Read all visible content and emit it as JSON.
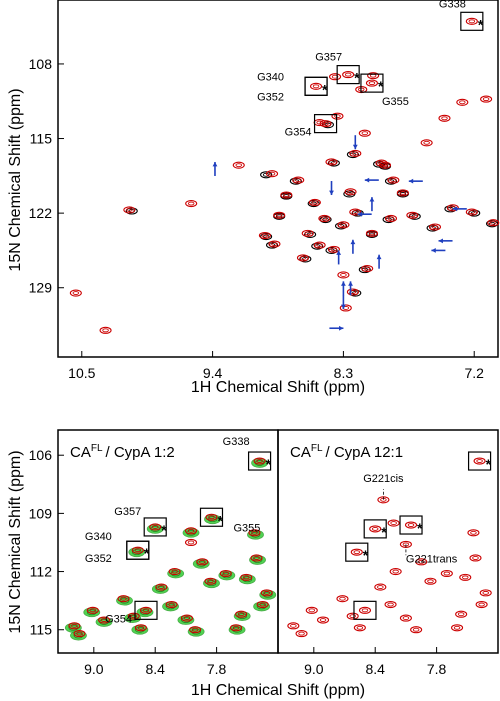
{
  "chart_data": [
    {
      "type": "scatter",
      "panel": "top",
      "xlabel": "1H Chemical Shift (ppm)",
      "ylabel": "15N Chemical Shift (ppm)",
      "x_ticks": [
        "10.5",
        "9.4",
        "8.3",
        "7.2"
      ],
      "y_ticks": [
        "108",
        "115",
        "122",
        "129"
      ],
      "xlim": [
        10.7,
        7.0
      ],
      "ylim": [
        102.0,
        135.5
      ],
      "axis_inverted": true,
      "series": [
        {
          "color": "#000000",
          "role": "reference spectrum",
          "x": [
            8.95,
            8.84,
            8.9,
            8.55,
            8.25,
            8.58,
            8.45,
            8.62,
            8.52,
            8.32,
            8.18,
            7.92,
            8.06,
            7.7,
            7.55,
            7.4,
            7.2,
            7.05,
            7.95,
            8.38,
            8.22,
            8.0,
            8.7,
            8.78,
            7.8,
            8.43,
            7.9,
            8.12,
            8.95,
            10.08,
            8.2,
            8.4
          ],
          "y": [
            118.4,
            122.3,
            125.0,
            121.1,
            120.2,
            124.0,
            122.6,
            126.3,
            125.1,
            123.2,
            122.0,
            122.6,
            124.0,
            122.3,
            123.4,
            121.6,
            122.0,
            123.0,
            117.6,
            117.3,
            116.5,
            117.4,
            119.0,
            120.4,
            120.2,
            113.7,
            119.0,
            127.3,
            124.2,
            121.8,
            129.5,
            125.5
          ]
        },
        {
          "color": "#cc0000",
          "role": "perturbed spectrum",
          "x": [
            8.06,
            7.22,
            8.26,
            8.37,
            8.05,
            8.53,
            8.9,
            8.84,
            8.88,
            8.54,
            8.24,
            8.6,
            8.46,
            8.64,
            8.5,
            8.3,
            8.2,
            7.9,
            8.06,
            7.72,
            7.53,
            7.38,
            7.22,
            7.04,
            7.95,
            8.4,
            8.2,
            7.98,
            8.68,
            8.78,
            7.8,
            8.45,
            7.88,
            8.1,
            8.96,
            10.1,
            8.22,
            8.38,
            9.18,
            9.58,
            10.3,
            10.55,
            8.12,
            8.5,
            8.35,
            7.1,
            7.3,
            7.6,
            7.45,
            8.3,
            8.28,
            8.15
          ],
          "y": [
            109.8,
            104.0,
            109.0,
            109.2,
            109.1,
            110.1,
            118.3,
            122.2,
            124.9,
            121.0,
            120.0,
            123.9,
            122.5,
            126.2,
            125.0,
            123.1,
            121.9,
            122.5,
            123.9,
            122.2,
            123.3,
            121.5,
            121.9,
            122.9,
            117.5,
            117.2,
            116.4,
            117.3,
            118.9,
            120.3,
            120.1,
            113.6,
            118.9,
            127.2,
            124.1,
            121.7,
            129.4,
            125.4,
            117.5,
            121.1,
            133.0,
            129.5,
            114.5,
            113.5,
            112.9,
            111.3,
            111.6,
            115.4,
            113.1,
            127.8,
            130.9,
            110.4
          ]
        }
      ],
      "annotations": [
        {
          "label": "G338",
          "x": 7.22,
          "y": 104.0,
          "boxed": true,
          "star": true
        },
        {
          "label": "G357",
          "x": 8.26,
          "y": 109.0,
          "boxed": true,
          "star": true
        },
        {
          "label": "G355",
          "x": 8.06,
          "y": 109.8,
          "boxed": true,
          "star": true
        },
        {
          "label": "G340",
          "x": 8.53,
          "y": 110.1,
          "boxed": true,
          "star": true
        },
        {
          "label": "G352",
          "x": 8.53,
          "y": 110.1,
          "boxed": true,
          "star": false
        },
        {
          "label": "G354",
          "x": 8.45,
          "y": 113.6,
          "boxed": true,
          "star": false
        }
      ],
      "arrows": [
        {
          "x": 9.38,
          "y": 117.2,
          "direction": "up"
        },
        {
          "x": 8.2,
          "y": 116.0,
          "direction": "down"
        },
        {
          "x": 8.12,
          "y": 118.9,
          "direction": "left"
        },
        {
          "x": 8.06,
          "y": 120.5,
          "direction": "up"
        },
        {
          "x": 8.4,
          "y": 120.3,
          "direction": "down"
        },
        {
          "x": 7.75,
          "y": 119.0,
          "direction": "left"
        },
        {
          "x": 7.38,
          "y": 121.6,
          "direction": "left"
        },
        {
          "x": 8.18,
          "y": 122.1,
          "direction": "left"
        },
        {
          "x": 8.22,
          "y": 124.5,
          "direction": "up"
        },
        {
          "x": 8.34,
          "y": 125.5,
          "direction": "up"
        },
        {
          "x": 8.0,
          "y": 125.9,
          "direction": "up"
        },
        {
          "x": 8.3,
          "y": 128.4,
          "direction": "up"
        },
        {
          "x": 8.24,
          "y": 128.4,
          "direction": "up"
        },
        {
          "x": 7.5,
          "y": 124.6,
          "direction": "left"
        },
        {
          "x": 7.56,
          "y": 125.5,
          "direction": "left"
        },
        {
          "x": 8.3,
          "y": 131.0,
          "direction": "down"
        },
        {
          "x": 8.3,
          "y": 132.8,
          "direction": "right"
        }
      ]
    },
    {
      "type": "scatter",
      "panel": "bottom-left",
      "title_main": "CA",
      "title_sup": "FL",
      "title_rest": "/ CypA   1:2",
      "xlabel": "1H Chemical Shift (ppm)",
      "ylabel": "15N Chemical Shift (ppm)",
      "x_ticks": [
        "9.0",
        "8.4",
        "7.8"
      ],
      "y_ticks": [
        "106",
        "109",
        "112",
        "115"
      ],
      "xlim": [
        9.35,
        7.2
      ],
      "ylim": [
        104.7,
        116.2
      ],
      "axis_inverted": true,
      "series": [
        {
          "color": "#33cc33",
          "role": "green spectrum",
          "x": [
            7.38,
            8.4,
            8.05,
            7.84,
            8.58,
            8.5,
            7.4,
            7.5,
            7.3,
            8.35,
            8.2,
            7.85,
            9.02,
            8.9,
            8.7,
            8.62,
            8.55,
            8.1,
            8.0,
            7.6,
            9.2,
            9.15,
            8.25,
            7.7,
            7.42,
            7.36,
            7.55,
            7.95
          ],
          "y": [
            106.4,
            109.8,
            110.0,
            109.3,
            111.0,
            114.1,
            111.4,
            112.4,
            113.2,
            112.9,
            112.1,
            112.6,
            114.1,
            114.6,
            113.5,
            114.4,
            115.0,
            114.5,
            115.1,
            115.0,
            114.9,
            115.3,
            113.8,
            112.2,
            110.1,
            113.8,
            114.3,
            111.6
          ]
        },
        {
          "color": "#cc0000",
          "role": "red spectrum",
          "x": [
            7.38,
            8.4,
            8.05,
            7.85,
            8.57,
            8.49,
            7.41,
            7.51,
            7.31,
            8.34,
            8.21,
            7.86,
            9.01,
            8.9,
            8.71,
            8.61,
            8.54,
            8.09,
            8.01,
            7.61,
            9.19,
            9.14,
            8.24,
            7.71,
            7.43,
            7.35,
            7.56,
            7.94,
            8.05
          ],
          "y": [
            106.3,
            109.7,
            109.9,
            109.2,
            110.9,
            114.0,
            111.3,
            112.3,
            113.1,
            112.8,
            112.0,
            112.5,
            114.0,
            114.5,
            113.4,
            114.3,
            114.9,
            114.4,
            115.0,
            114.9,
            114.8,
            115.2,
            113.7,
            112.1,
            110.0,
            113.7,
            114.2,
            111.5,
            110.5
          ]
        }
      ],
      "annotations": [
        {
          "label": "G338",
          "x": 7.38,
          "y": 106.3,
          "boxed": true,
          "star": true
        },
        {
          "label": "G357",
          "x": 8.4,
          "y": 109.7,
          "boxed": true,
          "star": true
        },
        {
          "label": "G355",
          "x": 7.85,
          "y": 109.2,
          "boxed": true,
          "star": true
        },
        {
          "label": "G340",
          "x": 8.57,
          "y": 110.9,
          "boxed": true,
          "star": true
        },
        {
          "label": "G352",
          "x": 8.57,
          "y": 110.9,
          "boxed": true,
          "star": false
        },
        {
          "label": "G354",
          "x": 8.49,
          "y": 114.0,
          "boxed": true,
          "star": false
        }
      ]
    },
    {
      "type": "scatter",
      "panel": "bottom-right",
      "title_main": "CA",
      "title_sup": "FL",
      "title_rest": "/ CypA   12:1",
      "x_ticks": [
        "9.0",
        "8.4",
        "7.8"
      ],
      "xlim": [
        9.35,
        7.2
      ],
      "ylim": [
        104.7,
        116.2
      ],
      "axis_inverted": true,
      "series": [
        {
          "color": "#cc0000",
          "role": "red spectrum",
          "x": [
            7.38,
            8.4,
            8.22,
            8.05,
            8.58,
            8.5,
            7.42,
            7.52,
            7.32,
            8.35,
            8.2,
            7.86,
            9.02,
            8.91,
            8.72,
            8.62,
            8.55,
            8.1,
            8.0,
            7.6,
            9.2,
            9.12,
            8.25,
            7.7,
            7.44,
            7.36,
            7.56,
            7.95,
            8.32,
            8.1
          ],
          "y": [
            106.3,
            109.8,
            109.5,
            109.6,
            111.0,
            114.0,
            111.3,
            112.3,
            113.1,
            112.8,
            112.0,
            112.5,
            114.0,
            114.5,
            113.4,
            114.3,
            114.9,
            114.4,
            115.0,
            114.9,
            114.8,
            115.2,
            113.7,
            112.1,
            110.0,
            113.7,
            114.2,
            111.5,
            108.3,
            110.6
          ]
        }
      ],
      "annotations": [
        {
          "label": "",
          "x": 7.38,
          "y": 106.3,
          "boxed": true,
          "star": true
        },
        {
          "label": "",
          "x": 8.4,
          "y": 109.8,
          "boxed": true,
          "star": true
        },
        {
          "label": "",
          "x": 8.05,
          "y": 109.6,
          "boxed": true,
          "star": true
        },
        {
          "label": "",
          "x": 8.58,
          "y": 111.0,
          "boxed": true,
          "star": true
        },
        {
          "label": "",
          "x": 8.5,
          "y": 114.0,
          "boxed": true,
          "star": false
        },
        {
          "label": "G221cis",
          "x": 8.32,
          "y": 108.3,
          "boxed": false,
          "star": false
        },
        {
          "label": "G221trans",
          "x": 8.1,
          "y": 110.6,
          "boxed": false,
          "star": false
        }
      ]
    }
  ]
}
